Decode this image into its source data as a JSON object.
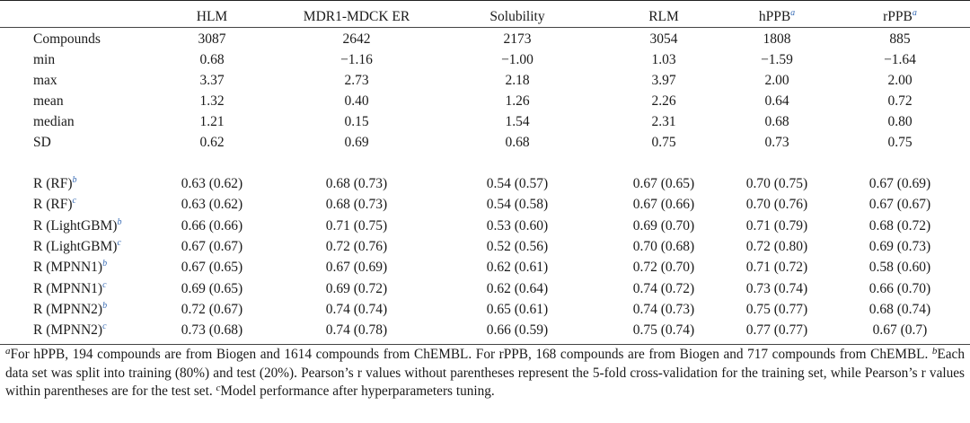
{
  "headers": [
    "HLM",
    "MDR1-MDCK ER",
    "Solubility",
    "RLM",
    "hPPB",
    "rPPB"
  ],
  "header_sups": [
    "",
    "",
    "",
    "",
    "a",
    "a"
  ],
  "stats_rows": [
    {
      "label": "Compounds",
      "values": [
        "3087",
        "2642",
        "2173",
        "3054",
        "1808",
        "885"
      ]
    },
    {
      "label": "min",
      "values": [
        "0.68",
        "−1.16",
        "−1.00",
        "1.03",
        "−1.59",
        "−1.64"
      ]
    },
    {
      "label": "max",
      "values": [
        "3.37",
        "2.73",
        "2.18",
        "3.97",
        "2.00",
        "2.00"
      ]
    },
    {
      "label": "mean",
      "values": [
        "1.32",
        "0.40",
        "1.26",
        "2.26",
        "0.64",
        "0.72"
      ]
    },
    {
      "label": "median",
      "values": [
        "1.21",
        "0.15",
        "1.54",
        "2.31",
        "0.68",
        "0.80"
      ]
    },
    {
      "label": "SD",
      "values": [
        "0.62",
        "0.69",
        "0.68",
        "0.75",
        "0.73",
        "0.75"
      ]
    }
  ],
  "model_rows": [
    {
      "label": "R (RF)",
      "sup": "b",
      "values": [
        "0.63 (0.62)",
        "0.68 (0.73)",
        "0.54 (0.57)",
        "0.67 (0.65)",
        "0.70 (0.75)",
        "0.67 (0.69)"
      ]
    },
    {
      "label": "R (RF)",
      "sup": "c",
      "values": [
        "0.63 (0.62)",
        "0.68 (0.73)",
        "0.54 (0.58)",
        "0.67 (0.66)",
        "0.70 (0.76)",
        "0.67 (0.67)"
      ]
    },
    {
      "label": "R (LightGBM)",
      "sup": "b",
      "values": [
        "0.66 (0.66)",
        "0.71 (0.75)",
        "0.53 (0.60)",
        "0.69 (0.70)",
        "0.71 (0.79)",
        "0.68 (0.72)"
      ]
    },
    {
      "label": "R (LightGBM)",
      "sup": "c",
      "values": [
        "0.67 (0.67)",
        "0.72 (0.76)",
        "0.52 (0.56)",
        "0.70 (0.68)",
        "0.72 (0.80)",
        "0.69 (0.73)"
      ]
    },
    {
      "label": "R (MPNN1)",
      "sup": "b",
      "values": [
        "0.67 (0.65)",
        "0.67 (0.69)",
        "0.62 (0.61)",
        "0.72 (0.70)",
        "0.71 (0.72)",
        "0.58 (0.60)"
      ]
    },
    {
      "label": "R (MPNN1)",
      "sup": "c",
      "values": [
        "0.69 (0.65)",
        "0.69 (0.72)",
        "0.62 (0.64)",
        "0.74 (0.72)",
        "0.73 (0.74)",
        "0.66 (0.70)"
      ]
    },
    {
      "label": "R (MPNN2)",
      "sup": "b",
      "values": [
        "0.72 (0.67)",
        "0.74 (0.74)",
        "0.65 (0.61)",
        "0.74 (0.73)",
        "0.75 (0.77)",
        "0.68 (0.74)"
      ]
    },
    {
      "label": "R (MPNN2)",
      "sup": "c",
      "values": [
        "0.73 (0.68)",
        "0.74 (0.78)",
        "0.66 (0.59)",
        "0.75 (0.74)",
        "0.77 (0.77)",
        "0.67 (0.7)"
      ]
    }
  ],
  "footnotes": [
    {
      "mark": "a",
      "text": "For hPPB, 194 compounds are from Biogen and 1614 compounds from ChEMBL. For rPPB, 168 compounds are from Biogen and 717 compounds from ChEMBL. "
    },
    {
      "mark": "b",
      "text": "Each data set was split into training (80%) and test (20%). Pearson’s r values without parentheses represent the 5-fold cross-validation for the training set, while Pearson’s r values within parentheses are for the test set. "
    },
    {
      "mark": "c",
      "text": "Model performance after hyperparameters tuning."
    }
  ]
}
